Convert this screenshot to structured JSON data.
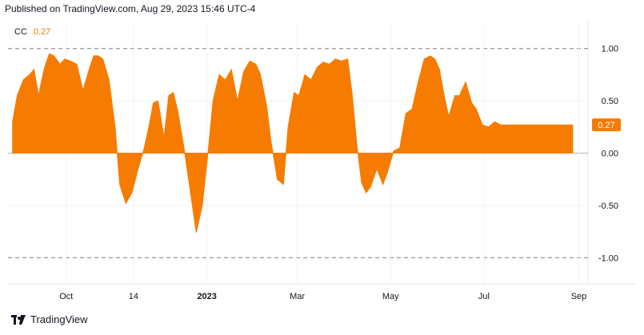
{
  "header": {
    "published": "Published on TradingView.com, Aug 29, 2023 15:46 UTC-4"
  },
  "legend": {
    "symbol": "CC",
    "value": "0.27"
  },
  "footer": {
    "brand": "TradingView",
    "logo_icon": "tradingview-logo-icon"
  },
  "colors": {
    "series": "#f57c00",
    "axis_text": "#131722",
    "grid": "#f0f3fa",
    "dashed": "#787b86",
    "badge_bg": "#f57c00",
    "badge_text": "#ffffff"
  },
  "chart_data": {
    "type": "area",
    "title": "",
    "xlabel": "",
    "ylabel": "",
    "x_ticks": [
      "Oct",
      "14",
      "2023",
      "Mar",
      "May",
      "Jul",
      "Sep"
    ],
    "y_ticks": [
      "1.00",
      "0.50",
      "0.00",
      "-0.50",
      "-1.00"
    ],
    "ylim": [
      -1.25,
      1.25
    ],
    "reference_lines": [
      1.0,
      -1.0
    ],
    "last_value_label": "0.27",
    "grid": true,
    "series": [
      {
        "x": [
          "2022-08-27",
          "2022-08-30",
          "2022-09-03",
          "2022-09-07",
          "2022-09-10",
          "2022-09-13",
          "2022-09-15",
          "2022-09-17",
          "2022-09-20",
          "2022-09-23",
          "2022-09-27",
          "2022-09-30",
          "2022-10-04",
          "2022-10-08",
          "2022-10-12",
          "2022-10-16",
          "2022-10-19",
          "2022-10-22",
          "2022-10-25",
          "2022-10-29",
          "2022-11-02",
          "2022-11-05",
          "2022-11-09",
          "2022-11-13",
          "2022-11-17",
          "2022-11-21",
          "2022-11-24",
          "2022-11-27",
          "2022-11-30",
          "2022-12-04",
          "2022-12-07",
          "2022-12-10",
          "2022-12-13",
          "2022-12-17",
          "2022-12-21",
          "2022-12-25",
          "2022-12-29",
          "2023-01-02",
          "2023-01-05",
          "2023-01-09",
          "2023-01-13",
          "2023-01-17",
          "2023-01-21",
          "2023-01-25",
          "2023-01-29",
          "2023-02-02",
          "2023-02-05",
          "2023-02-09",
          "2023-02-12",
          "2023-02-16",
          "2023-02-20",
          "2023-02-23",
          "2023-02-27",
          "2023-03-02",
          "2023-03-06",
          "2023-03-10",
          "2023-03-14",
          "2023-03-18",
          "2023-03-22",
          "2023-03-26",
          "2023-03-30",
          "2023-04-03",
          "2023-04-06",
          "2023-04-09",
          "2023-04-12",
          "2023-04-15",
          "2023-04-18",
          "2023-04-22",
          "2023-04-26",
          "2023-04-29",
          "2023-05-03",
          "2023-05-07",
          "2023-05-11",
          "2023-05-15",
          "2023-05-19",
          "2023-05-23",
          "2023-05-27",
          "2023-05-30",
          "2023-06-02",
          "2023-06-05",
          "2023-06-08",
          "2023-06-12",
          "2023-06-15",
          "2023-06-19",
          "2023-06-23",
          "2023-06-26",
          "2023-06-30",
          "2023-07-04",
          "2023-07-08",
          "2023-07-12",
          "2023-07-16",
          "2023-07-20",
          "2023-07-24",
          "2023-07-28",
          "2023-08-01",
          "2023-08-05",
          "2023-08-09",
          "2023-08-13",
          "2023-08-17",
          "2023-08-21",
          "2023-08-24",
          "2023-08-28"
        ],
        "values": [
          0.3,
          0.55,
          0.7,
          0.75,
          0.8,
          0.55,
          0.7,
          0.82,
          0.95,
          0.93,
          0.85,
          0.9,
          0.88,
          0.85,
          0.6,
          0.8,
          0.93,
          0.93,
          0.9,
          0.7,
          0.25,
          -0.3,
          -0.48,
          -0.38,
          -0.15,
          0.05,
          0.25,
          0.48,
          0.5,
          0.15,
          0.55,
          0.58,
          0.4,
          0.05,
          -0.35,
          -0.76,
          -0.5,
          0.05,
          0.5,
          0.75,
          0.7,
          0.8,
          0.5,
          0.78,
          0.88,
          0.85,
          0.75,
          0.45,
          0.1,
          -0.25,
          -0.3,
          0.25,
          0.58,
          0.55,
          0.75,
          0.7,
          0.82,
          0.87,
          0.85,
          0.9,
          0.88,
          0.9,
          0.55,
          0.08,
          -0.28,
          -0.38,
          -0.32,
          -0.15,
          -0.3,
          -0.18,
          0.02,
          0.05,
          0.38,
          0.42,
          0.68,
          0.9,
          0.93,
          0.9,
          0.8,
          0.55,
          0.35,
          0.55,
          0.55,
          0.68,
          0.48,
          0.42,
          0.27,
          0.25,
          0.3,
          0.27,
          0.27,
          0.27,
          0.27,
          0.27,
          0.27,
          0.27,
          0.27,
          0.27,
          0.27,
          0.27,
          0.27,
          0.27
        ]
      }
    ]
  }
}
